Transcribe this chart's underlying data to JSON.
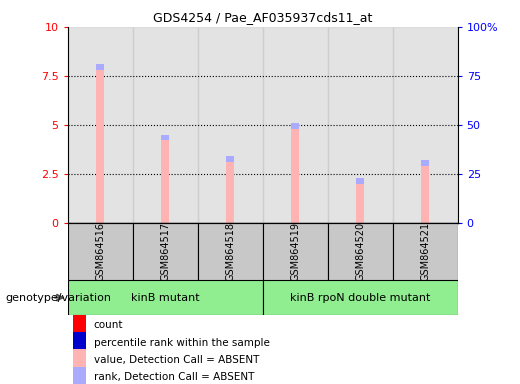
{
  "title": "GDS4254 / Pae_AF035937cds11_at",
  "samples": [
    "GSM864516",
    "GSM864517",
    "GSM864518",
    "GSM864519",
    "GSM864520",
    "GSM864521"
  ],
  "bar_values": [
    7.8,
    4.2,
    3.1,
    4.8,
    2.0,
    2.9
  ],
  "rank_values": [
    0.3,
    0.3,
    0.3,
    0.3,
    0.3,
    0.3
  ],
  "ylim_left": [
    0,
    10
  ],
  "ylim_right": [
    0,
    100
  ],
  "yticks_left": [
    0,
    2.5,
    5,
    7.5,
    10
  ],
  "yticks_right": [
    0,
    25,
    50,
    75,
    100
  ],
  "ytick_labels_left": [
    "0",
    "2.5",
    "5",
    "7.5",
    "10"
  ],
  "ytick_labels_right": [
    "0",
    "25",
    "50",
    "75",
    "100%"
  ],
  "bar_color": "#ffb3b3",
  "rank_bar_color": "#aaaaff",
  "group1_label": "kinB mutant",
  "group2_label": "kinB rpoN double mutant",
  "group_color": "#90ee90",
  "group_row_label": "genotype/variation",
  "legend_colors": [
    "#ff0000",
    "#0000cc",
    "#ffb3b3",
    "#aaaaff"
  ],
  "legend_labels": [
    "count",
    "percentile rank within the sample",
    "value, Detection Call = ABSENT",
    "rank, Detection Call = ABSENT"
  ]
}
